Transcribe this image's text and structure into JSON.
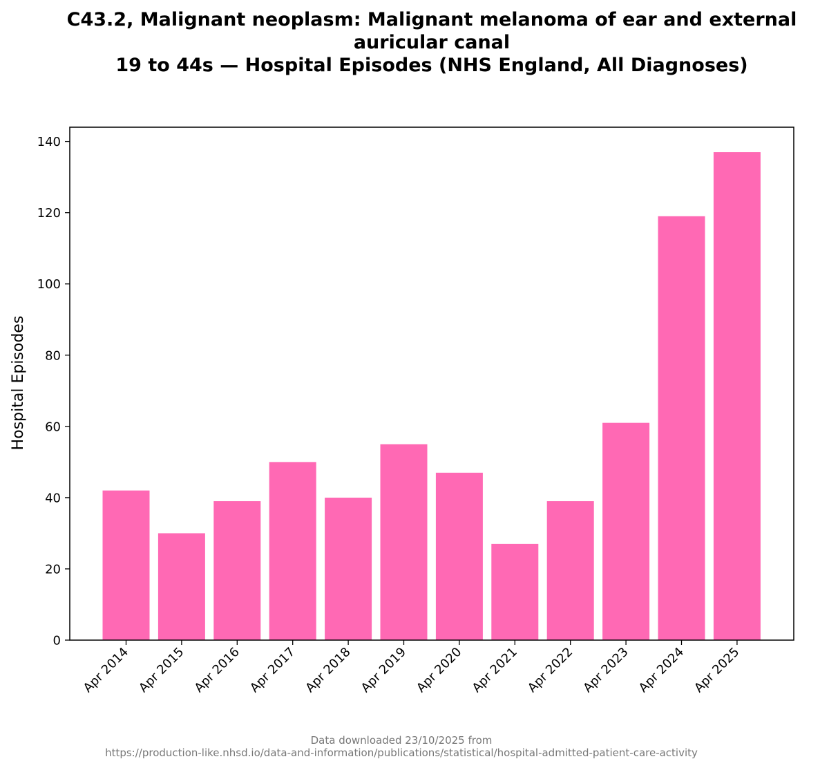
{
  "chart_data": {
    "type": "bar",
    "title_lines": [
      "C43.2, Malignant neoplasm: Malignant melanoma of ear and external",
      "auricular canal",
      "19 to 44s — Hospital Episodes (NHS England, All Diagnoses)"
    ],
    "xlabel": "",
    "ylabel": "Hospital Episodes",
    "categories": [
      "Apr 2014",
      "Apr 2015",
      "Apr 2016",
      "Apr 2017",
      "Apr 2018",
      "Apr 2019",
      "Apr 2020",
      "Apr 2021",
      "Apr 2022",
      "Apr 2023",
      "Apr 2024",
      "Apr 2025"
    ],
    "values": [
      42,
      30,
      39,
      50,
      40,
      55,
      47,
      27,
      39,
      61,
      119,
      137
    ],
    "ylim": [
      0,
      144
    ],
    "yticks": [
      0,
      20,
      40,
      60,
      80,
      100,
      120,
      140
    ],
    "bar_color": "#ff69b4",
    "grid": false
  },
  "footer": {
    "line1": "Data downloaded 23/10/2025 from",
    "line2": "https://production-like.nhsd.io/data-and-information/publications/statistical/hospital-admitted-patient-care-activity"
  }
}
